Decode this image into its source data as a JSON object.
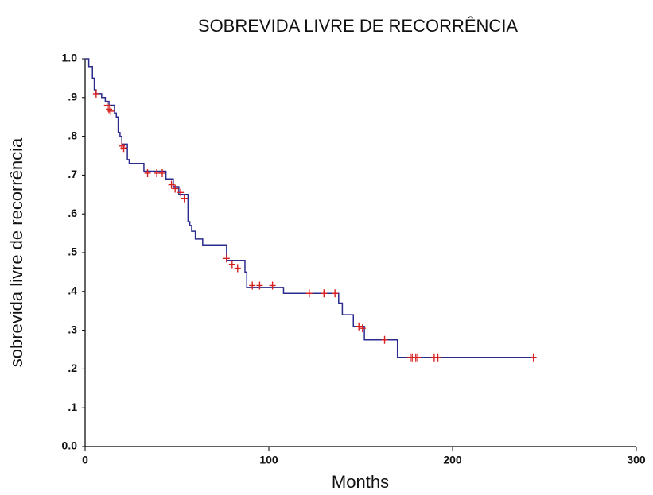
{
  "chart_data": {
    "type": "step",
    "title": "SOBREVIDA LIVRE DE RECORRÊNCIA",
    "x_label": "Months",
    "y_label": "sobrevida livre de recorrência",
    "xlim": [
      0,
      300
    ],
    "xticks": [
      0,
      100,
      200,
      300
    ],
    "ylim": [
      0,
      1
    ],
    "yticks": [
      {
        "value": 0,
        "label": "0.0"
      },
      {
        "value": 0.1,
        "label": ".1"
      },
      {
        "value": 0.2,
        "label": ".2"
      },
      {
        "value": 0.3,
        "label": ".3"
      },
      {
        "value": 0.4,
        "label": ".4"
      },
      {
        "value": 0.5,
        "label": ".5"
      },
      {
        "value": 0.6,
        "label": ".6"
      },
      {
        "value": 0.7,
        "label": ".7"
      },
      {
        "value": 0.8,
        "label": ".8"
      },
      {
        "value": 0.9,
        "label": ".9"
      },
      {
        "value": 1,
        "label": "1.0"
      }
    ],
    "series": [
      {
        "color": "#2b2b8f",
        "x": [
          0,
          2,
          4,
          5,
          6,
          9,
          11,
          13,
          16,
          17,
          18,
          19,
          20,
          23,
          24,
          32,
          44,
          48,
          51,
          56,
          57,
          58,
          60,
          64,
          77,
          87,
          88,
          108,
          138,
          140,
          146,
          152,
          170,
          244
        ],
        "values": [
          1.0,
          0.98,
          0.95,
          0.92,
          0.91,
          0.9,
          0.89,
          0.88,
          0.86,
          0.85,
          0.81,
          0.8,
          0.78,
          0.74,
          0.73,
          0.71,
          0.69,
          0.67,
          0.65,
          0.58,
          0.57,
          0.555,
          0.535,
          0.52,
          0.48,
          0.45,
          0.41,
          0.395,
          0.37,
          0.34,
          0.31,
          0.275,
          0.23,
          0.23
        ]
      }
    ],
    "censor_marks": {
      "color": "#d62020",
      "x": [
        6,
        12,
        13,
        14,
        20,
        21,
        34,
        39,
        42,
        47,
        49,
        52,
        54,
        77,
        80,
        83,
        91,
        95,
        102,
        122,
        130,
        136,
        149,
        151,
        163,
        177,
        178,
        180,
        181,
        190,
        192,
        244
      ],
      "values": [
        0.91,
        0.88,
        0.87,
        0.865,
        0.775,
        0.77,
        0.705,
        0.705,
        0.705,
        0.675,
        0.665,
        0.655,
        0.64,
        0.485,
        0.47,
        0.46,
        0.415,
        0.415,
        0.415,
        0.395,
        0.395,
        0.395,
        0.31,
        0.305,
        0.275,
        0.23,
        0.23,
        0.23,
        0.23,
        0.23,
        0.23,
        0.23
      ]
    }
  }
}
